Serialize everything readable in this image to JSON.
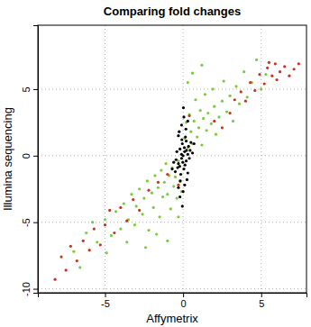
{
  "chart_data": {
    "type": "scatter",
    "title": "Comparing fold changes",
    "x_label": "Affymetrix",
    "y_label": "Illumina sequencing",
    "xlim": [
      -9.3,
      7.9
    ],
    "ylim": [
      -10.3,
      9.8
    ],
    "xticks": [
      -5,
      0,
      5
    ],
    "yticks": [
      -10,
      -5,
      0,
      5
    ],
    "grid": true,
    "series": [
      {
        "color": "#7acc3a",
        "marker": "circle",
        "x": [
          -6.2,
          -5.5,
          -5,
          -4.6,
          -4.3,
          -4,
          -3.8,
          -3.5,
          -3.3,
          -3.1,
          -3,
          -2.8,
          -2.6,
          -2.5,
          -2.3,
          -2.2,
          -2,
          -1.9,
          -1.8,
          -1.6,
          -1.5,
          -1.4,
          -1.3,
          -1.2,
          -1.1,
          -1,
          -0.9,
          -0.8,
          -0.7,
          -0.6,
          -0.5,
          -0.4,
          -0.3,
          -0.2,
          -0.1,
          0.1,
          0.2,
          0.3,
          0.4,
          0.5,
          0.6,
          0.7,
          0.8,
          0.9,
          1,
          1.1,
          1.2,
          1.3,
          1.4,
          1.5,
          1.6,
          1.8,
          1.9,
          2,
          2.1,
          2.3,
          2.5,
          2.6,
          2.8,
          3,
          3.2,
          3.4,
          3.6,
          3.9,
          4.1,
          4.4,
          4.7,
          5,
          5.3,
          -7,
          -6.6,
          -5.8,
          -4.9,
          -3.6,
          -2.4,
          -1.7,
          0.3,
          0.6,
          1.2,
          -0.3,
          -1
        ],
        "values": [
          -5.8,
          -6.5,
          -4.8,
          -6,
          -4.2,
          -5.5,
          -3.6,
          -4.8,
          -2.9,
          -5.2,
          -3.8,
          -2.5,
          -4.4,
          -3.2,
          -1.9,
          -5.6,
          -2.8,
          -3.9,
          -1.5,
          -2.4,
          -4.6,
          -1.1,
          -3.1,
          -2,
          -0.6,
          -2.9,
          -1.5,
          -4,
          -0.9,
          -2.3,
          -1.6,
          -3.2,
          -0.4,
          -1.9,
          -2.7,
          1.3,
          2.5,
          0.6,
          3.1,
          1.8,
          0.9,
          2.6,
          4.2,
          1.4,
          2.1,
          3.4,
          0.8,
          2.8,
          4.6,
          1.9,
          3.2,
          2.4,
          5,
          3.7,
          1.6,
          2.9,
          4.1,
          5.6,
          3.3,
          4.5,
          2.6,
          5.2,
          3.9,
          6.3,
          4.4,
          5.5,
          7.2,
          5,
          6.1,
          -7.2,
          -8.4,
          -5,
          -7.3,
          -6.5,
          -6.9,
          -5.9,
          5.5,
          6.2,
          6.8,
          -4.6,
          -6.4
        ]
      },
      {
        "color": "#000000",
        "marker": "circle",
        "x": [
          0,
          0.1,
          -0.1,
          0.2,
          -0.2,
          0.3,
          -0.3,
          0.05,
          -0.05,
          0.15,
          -0.15,
          0.25,
          -0.25,
          0.35,
          -0.35,
          0.1,
          -0.1,
          0.4,
          -0.4,
          0.5,
          -0.5,
          0,
          0.05,
          -0.2,
          0.2,
          -0.1,
          0.12,
          -0.08,
          0.3,
          -0.3,
          0.45,
          -0.45,
          0.6,
          -0.6,
          0.08,
          -0.02,
          0.18,
          -0.18,
          0.02,
          -0.05,
          0.22,
          -0.22,
          0.3,
          -0.3,
          0.7,
          -0.7
        ],
        "values": [
          0,
          0.3,
          -0.2,
          -0.4,
          0.5,
          0.1,
          -0.6,
          -1,
          0.9,
          1.4,
          -1.4,
          -1.8,
          1.8,
          0.7,
          -0.9,
          -2.2,
          2.3,
          -0.2,
          0.3,
          1,
          -1.2,
          -2.7,
          2.9,
          -3.1,
          1.1,
          0.1,
          -0.7,
          1.2,
          -1.3,
          1.5,
          0.4,
          -0.3,
          0.2,
          -0.5,
          0.6,
          -0.5,
          2,
          -1.9,
          3.6,
          -3.8,
          0.4,
          -0.8,
          2.6,
          -2.4,
          0.9,
          -1
        ]
      },
      {
        "color": "#c8321e",
        "marker": "circle",
        "x": [
          -8.2,
          -7.8,
          -7.5,
          -7.2,
          -6.8,
          -6.4,
          -6,
          -5.7,
          -5.3,
          -5,
          -4.7,
          -4.4,
          -4,
          -3.6,
          -3.2,
          -2.8,
          -2.2,
          -1.6,
          -1,
          2,
          2.5,
          3,
          3.3,
          3.7,
          4,
          4.3,
          4.6,
          4.9,
          5.2,
          5.4,
          5.7,
          5.9,
          6.2,
          6.5,
          6.8,
          7.1,
          7.4,
          5.5,
          6,
          -0.3,
          0.4
        ],
        "values": [
          -9.3,
          -7.6,
          -8.6,
          -6.8,
          -7.9,
          -6.4,
          -7.1,
          -5.5,
          -6.7,
          -5.2,
          -4.1,
          -5.8,
          -3.9,
          -4.9,
          -3.3,
          -4.1,
          -2.6,
          -2,
          -1.4,
          2.6,
          2.1,
          3.2,
          4.2,
          4.8,
          4.1,
          5.5,
          4.9,
          6.1,
          5.4,
          6.6,
          6,
          6.9,
          6.3,
          6.7,
          6,
          6.5,
          6.9,
          7,
          5.7,
          -2.2,
          3
        ]
      }
    ]
  }
}
